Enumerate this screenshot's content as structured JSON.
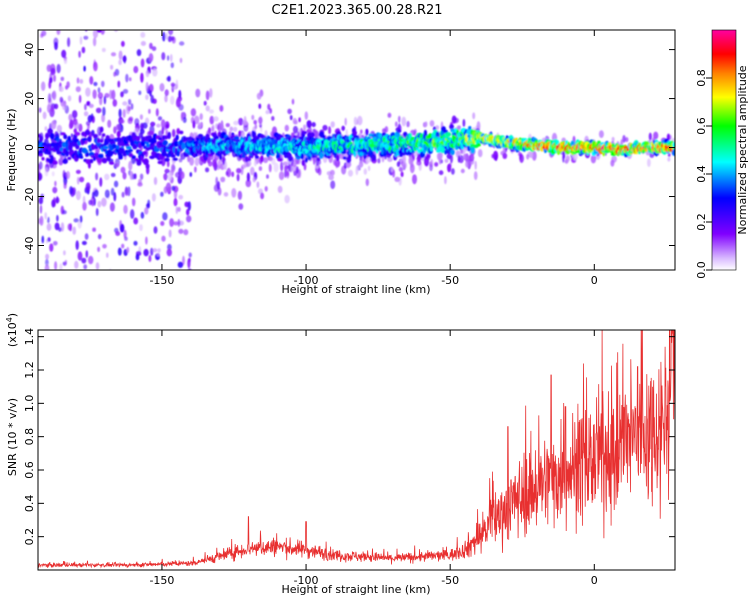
{
  "title": "C2E1.2023.365.00.28.R21",
  "chart_data": [
    {
      "type": "heatmap",
      "xlabel": "Height of straight line (km)",
      "ylabel": "Frequency (Hz)",
      "xlim": [
        -193,
        28
      ],
      "ylim": [
        -50,
        48
      ],
      "xticks": [
        "-150",
        "-100",
        "-50",
        "0"
      ],
      "xtick_values": [
        -150,
        -100,
        -50,
        0
      ],
      "yticks": [
        "40",
        "20",
        "0",
        "-20",
        "-40"
      ],
      "ytick_values": [
        40,
        20,
        0,
        -20,
        -40
      ],
      "colorbar": {
        "label": "Normalized spectral amplitude",
        "range": [
          0,
          1
        ],
        "ticks": [
          "0.0",
          "0.2",
          "0.4",
          "0.6",
          "0.8"
        ],
        "tick_values": [
          0.0,
          0.2,
          0.4,
          0.6,
          0.8
        ],
        "colors": [
          "#ffffff",
          "#8000ff",
          "#0000ff",
          "#00ffff",
          "#00ff00",
          "#ffff00",
          "#ff8000",
          "#ff0000",
          "#ff00a0"
        ]
      },
      "ridge_center_hz": [
        [
          -193,
          0
        ],
        [
          -150,
          0
        ],
        [
          -130,
          1
        ],
        [
          -100,
          0
        ],
        [
          -80,
          1
        ],
        [
          -60,
          2
        ],
        [
          -50,
          3
        ],
        [
          -40,
          4
        ],
        [
          -30,
          2
        ],
        [
          -20,
          1
        ],
        [
          -10,
          0
        ],
        [
          0,
          0
        ],
        [
          10,
          -1
        ],
        [
          20,
          0
        ],
        [
          28,
          0
        ]
      ],
      "ridge_amplitude": [
        [
          -193,
          0.35
        ],
        [
          -150,
          0.35
        ],
        [
          -140,
          0.4
        ],
        [
          -120,
          0.45
        ],
        [
          -100,
          0.5
        ],
        [
          -80,
          0.55
        ],
        [
          -60,
          0.6
        ],
        [
          -50,
          0.65
        ],
        [
          -40,
          0.7
        ],
        [
          -30,
          0.75
        ],
        [
          -20,
          0.85
        ],
        [
          -10,
          0.9
        ],
        [
          0,
          0.95
        ],
        [
          10,
          0.9
        ],
        [
          20,
          0.9
        ],
        [
          28,
          0.9
        ]
      ]
    },
    {
      "type": "line",
      "xlabel": "Height of straight line (km)",
      "ylabel": "SNR (10 * v/v)",
      "yscale_label": "(x10",
      "yscale_exp": "4",
      "yscale_close": ")",
      "xlim": [
        -193,
        28
      ],
      "ylim": [
        0,
        1.44
      ],
      "xticks": [
        "-150",
        "-100",
        "-50",
        "0"
      ],
      "xtick_values": [
        -150,
        -100,
        -50,
        0
      ],
      "yticks": [
        "0.2",
        "0.4",
        "0.6",
        "0.8",
        "1.0",
        "1.2",
        "1.4"
      ],
      "ytick_values": [
        0.2,
        0.4,
        0.6,
        0.8,
        1.0,
        1.2,
        1.4
      ],
      "color": "#e83030",
      "trend": [
        [
          -193,
          0.03
        ],
        [
          -160,
          0.03
        ],
        [
          -140,
          0.04
        ],
        [
          -130,
          0.08
        ],
        [
          -120,
          0.13
        ],
        [
          -110,
          0.14
        ],
        [
          -100,
          0.12
        ],
        [
          -90,
          0.09
        ],
        [
          -80,
          0.08
        ],
        [
          -70,
          0.07
        ],
        [
          -60,
          0.08
        ],
        [
          -50,
          0.09
        ],
        [
          -45,
          0.12
        ],
        [
          -40,
          0.2
        ],
        [
          -35,
          0.3
        ],
        [
          -30,
          0.38
        ],
        [
          -25,
          0.45
        ],
        [
          -20,
          0.5
        ],
        [
          -15,
          0.55
        ],
        [
          -10,
          0.6
        ],
        [
          -5,
          0.62
        ],
        [
          0,
          0.66
        ],
        [
          5,
          0.7
        ],
        [
          10,
          0.75
        ],
        [
          15,
          0.8
        ],
        [
          20,
          0.85
        ],
        [
          25,
          0.92
        ],
        [
          28,
          1.2
        ]
      ],
      "peaks": [
        [
          -120,
          0.32
        ],
        [
          -100,
          0.29
        ],
        [
          -30,
          0.86
        ],
        [
          -15,
          1.17
        ],
        [
          -10,
          0.98
        ],
        [
          15,
          1.22
        ],
        [
          27,
          1.42
        ]
      ]
    }
  ]
}
